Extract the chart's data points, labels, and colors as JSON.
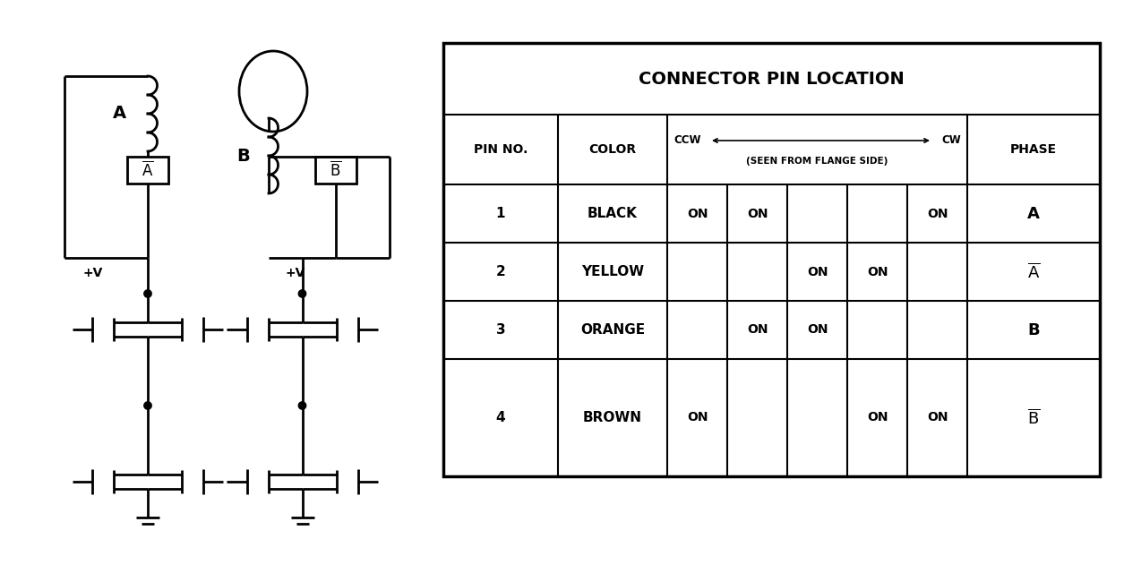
{
  "title": "CONNECTOR PIN LOCATION",
  "pin_header": "PIN NO.",
  "color_header": "COLOR",
  "ccw_label": "CCW",
  "cw_label": "CW",
  "seen_label": "(SEEN FROM FLANGE SIDE)",
  "phase_header": "PHASE",
  "rows": [
    {
      "pin": "1",
      "color": "BLACK",
      "steps": [
        "ON",
        "ON",
        "",
        "",
        "ON"
      ],
      "phase": "A",
      "phase_bar": false
    },
    {
      "pin": "2",
      "color": "YELLOW",
      "steps": [
        "",
        "",
        "ON",
        "ON",
        ""
      ],
      "phase": "A",
      "phase_bar": true
    },
    {
      "pin": "3",
      "color": "ORANGE",
      "steps": [
        "",
        "ON",
        "ON",
        "",
        ""
      ],
      "phase": "B",
      "phase_bar": false
    },
    {
      "pin": "4",
      "color": "BROWN",
      "steps": [
        "ON",
        "",
        "",
        "ON",
        "ON"
      ],
      "phase": "B",
      "phase_bar": true
    }
  ]
}
